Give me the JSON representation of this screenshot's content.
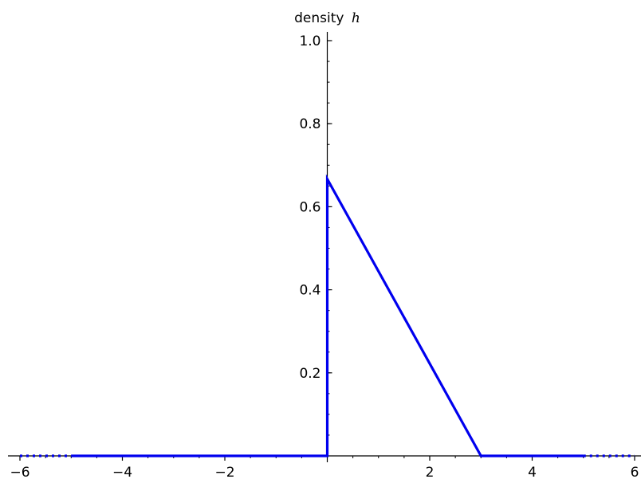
{
  "chart_data": {
    "type": "line",
    "title": "",
    "xlabel": "",
    "ylabel_text": "density",
    "ylabel_math": "h",
    "xlim": [
      -6,
      6
    ],
    "ylim": [
      0,
      1.0
    ],
    "grid": false,
    "x_ticks": [
      {
        "value": -6,
        "label": "−6"
      },
      {
        "value": -4,
        "label": "−4"
      },
      {
        "value": -2,
        "label": "−2"
      },
      {
        "value": 2,
        "label": "2"
      },
      {
        "value": 4,
        "label": "4"
      },
      {
        "value": 6,
        "label": "6"
      }
    ],
    "y_ticks": [
      {
        "value": 0.2,
        "label": "0.2"
      },
      {
        "value": 0.4,
        "label": "0.4"
      },
      {
        "value": 0.6,
        "label": "0.6"
      },
      {
        "value": 0.8,
        "label": "0.8"
      },
      {
        "value": 1.0,
        "label": "1.0"
      }
    ],
    "series": [
      {
        "style": "solid",
        "color": "#0000ee",
        "points": [
          [
            -5,
            0
          ],
          [
            0,
            0
          ],
          [
            0,
            0.6667
          ],
          [
            3,
            0
          ],
          [
            5,
            0
          ]
        ]
      },
      {
        "style": "dotted",
        "color": "#0000ee",
        "points": [
          [
            -6,
            0
          ],
          [
            -5,
            0
          ]
        ]
      },
      {
        "style": "dotted",
        "color": "#0000ee",
        "points": [
          [
            5,
            0
          ],
          [
            6,
            0
          ]
        ]
      }
    ]
  }
}
